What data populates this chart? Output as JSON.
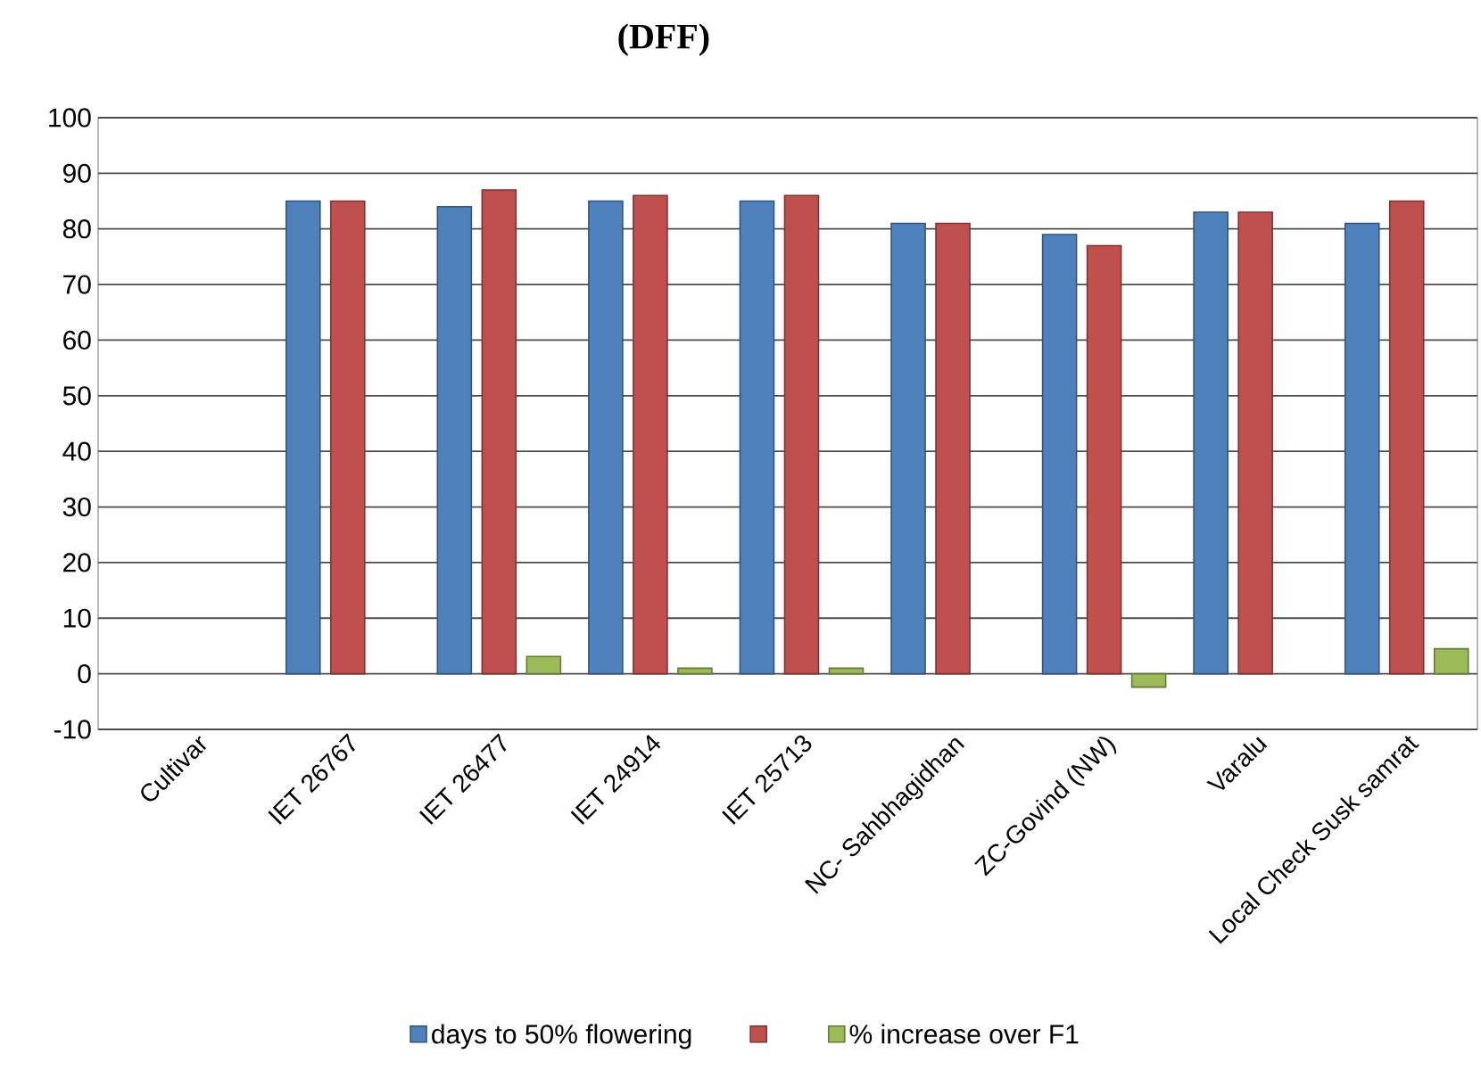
{
  "chart_data": {
    "type": "bar",
    "title": "(DFF)",
    "categories": [
      "Cultivar",
      "IET 26767",
      "IET 26477",
      "IET 24914",
      "IET 25713",
      "NC- Sahbhagidhan",
      "ZC-Govind (NW)",
      "Varalu",
      "Local Check Susk samrat"
    ],
    "series": [
      {
        "name": "days to 50% flowering",
        "color": "#4f81bd",
        "values": [
          null,
          85,
          84,
          85,
          85,
          81,
          79,
          83,
          81
        ]
      },
      {
        "color": "#c0504d",
        "values": [
          null,
          85,
          87,
          86,
          86,
          81,
          77,
          83,
          85
        ]
      },
      {
        "name": "% increase over F1",
        "color": "#9bbb59",
        "values": [
          null,
          null,
          3.1,
          1,
          1,
          null,
          -2.4,
          null,
          4.5
        ]
      }
    ],
    "ylim": [
      -10,
      100
    ],
    "yticks": [
      -10,
      0,
      10,
      20,
      30,
      40,
      50,
      60,
      70,
      80,
      90,
      100
    ],
    "grid": "y",
    "legend": "bottom"
  }
}
